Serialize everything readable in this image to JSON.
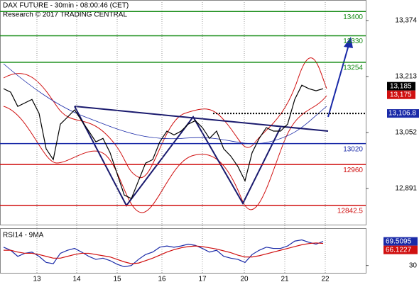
{
  "chart_data": [
    {
      "type": "line",
      "title": "DAX FUTURE - 30min - 08:00:46 (CET)",
      "subtitle": "Research © 2017 TRADING CENTRAL",
      "color": "#000000",
      "x": [
        0,
        1,
        2,
        3,
        4,
        5,
        6,
        7,
        8,
        9,
        10,
        11,
        12,
        13,
        14,
        15,
        16,
        17,
        18,
        19,
        20,
        21,
        22,
        23,
        24,
        25,
        26,
        27,
        28,
        29,
        30,
        31,
        32,
        33,
        34,
        35,
        36,
        37,
        38,
        39,
        40,
        41,
        42,
        43,
        44,
        45
      ],
      "values": [
        13178,
        13168,
        13127,
        13137,
        13147,
        13107,
        13005,
        12974,
        13076,
        13096,
        13117,
        13086,
        13056,
        13025,
        13035,
        12994,
        12933,
        12872,
        12862,
        12913,
        12964,
        12974,
        13025,
        13056,
        13045,
        13056,
        13076,
        13086,
        13066,
        13035,
        13056,
        13005,
        12984,
        12954,
        12913,
        12994,
        13035,
        13066,
        13056,
        13056,
        13076,
        13147,
        13188,
        13178,
        13172,
        13178
      ],
      "xlim": [
        -0.5,
        51
      ],
      "xticks": [
        {
          "value": 4.7,
          "label": "13"
        },
        {
          "value": 10.3,
          "label": "14"
        },
        {
          "value": 16,
          "label": "15"
        },
        {
          "value": 22.3,
          "label": "16"
        },
        {
          "value": 28,
          "label": "17"
        },
        {
          "value": 33.9,
          "label": "20"
        },
        {
          "value": 39.6,
          "label": "21"
        },
        {
          "value": 45.3,
          "label": "22"
        }
      ],
      "ylim": [
        12785,
        13433
      ],
      "yticks": [
        {
          "value": 13374,
          "label": "13,374"
        },
        {
          "value": 13213,
          "label": "13,213"
        },
        {
          "value": 13052,
          "label": "13,052"
        },
        {
          "value": 12891,
          "label": "12,891"
        }
      ],
      "levels": [
        {
          "value": 13400,
          "color": "#138a13"
        },
        {
          "value": 13330,
          "color": "#138a13"
        },
        {
          "value": 13254,
          "color": "#138a13"
        },
        {
          "value": 13020,
          "color": "#1a2aa8"
        },
        {
          "value": 12960,
          "color": "#d01010"
        },
        {
          "value": 12842.5,
          "color": "#d01010"
        }
      ],
      "pivot": {
        "value": 13106.8,
        "label": "13,106.8",
        "color": "#1a2aa8"
      },
      "price_labels": [
        {
          "value": 13185,
          "label": "13,185",
          "color": "#000000"
        },
        {
          "value": 13175,
          "label": "13,175",
          "color": "#d01010"
        }
      ]
    },
    {
      "type": "line",
      "title": "RSI14 - 9MA",
      "x": [
        0,
        1,
        2,
        3,
        4,
        5,
        6,
        7,
        8,
        9,
        10,
        11,
        12,
        13,
        14,
        15,
        16,
        17,
        18,
        19,
        20,
        21,
        22,
        23,
        24,
        25,
        26,
        27,
        28,
        29,
        30,
        31,
        32,
        33,
        34,
        35,
        36,
        37,
        38,
        39,
        40,
        41,
        42,
        43,
        44,
        45
      ],
      "series": [
        {
          "color": "#1a2aa8",
          "values": [
            60,
            55,
            45,
            50,
            52,
            45,
            35,
            33,
            50,
            55,
            58,
            52,
            45,
            40,
            42,
            38,
            32,
            28,
            30,
            40,
            48,
            52,
            60,
            62,
            60,
            62,
            65,
            63,
            58,
            52,
            55,
            45,
            42,
            40,
            35,
            48,
            55,
            60,
            58,
            58,
            62,
            70,
            72,
            68,
            65,
            69.5
          ]
        },
        {
          "color": "#d01010",
          "values": [
            55,
            55,
            52,
            50,
            50,
            48,
            45,
            42,
            42,
            45,
            48,
            50,
            50,
            48,
            46,
            44,
            40,
            36,
            33,
            34,
            38,
            42,
            47,
            52,
            56,
            59,
            61,
            62,
            61,
            59,
            57,
            54,
            51,
            47,
            44,
            44,
            46,
            49,
            52,
            55,
            58,
            61,
            64,
            66,
            67,
            66.1
          ]
        }
      ],
      "xlim": [
        -0.5,
        51
      ],
      "ylim": [
        18,
        90
      ],
      "yticks": [
        30
      ],
      "price_labels": [
        {
          "value": 69.5095,
          "color": "#1a2aa8"
        },
        {
          "value": 66.1227,
          "color": "#d01010"
        }
      ]
    }
  ]
}
